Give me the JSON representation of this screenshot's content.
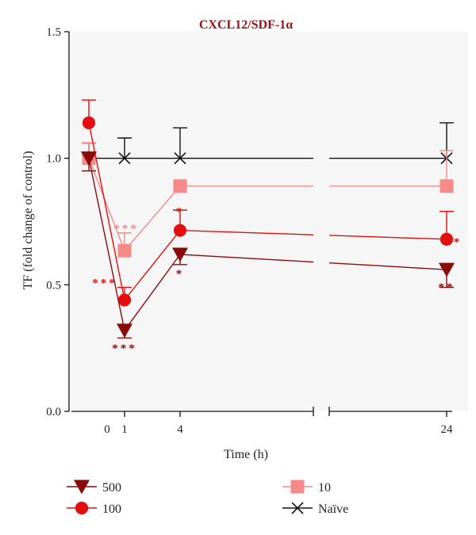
{
  "chart_data": {
    "type": "line",
    "title": "CXCL12/SDF-1α",
    "xlabel": "Time (h)",
    "ylabel": "TF (fold change of control)",
    "ylim": [
      0,
      1.5
    ],
    "y_ticks": [
      "0.0",
      "0.5",
      "1.0",
      "1.5"
    ],
    "x_ticks": [
      "0",
      "1",
      "4",
      "24"
    ],
    "x_axis_break": true,
    "legend_placement": "bottom",
    "series": [
      {
        "name": "500",
        "color": "#8b0a0a",
        "marker": "triangle-down",
        "points": [
          {
            "x": 0,
            "y": 1.0,
            "err": 0.05
          },
          {
            "x": 1,
            "y": 0.32,
            "err": 0.03,
            "sig": "***"
          },
          {
            "x": 4,
            "y": 0.62,
            "err": 0.04,
            "sig": "*"
          },
          {
            "x": 24,
            "y": 0.56,
            "err": 0.07,
            "sig": "**"
          }
        ]
      },
      {
        "name": "100",
        "color": "#e30e0e",
        "marker": "circle",
        "points": [
          {
            "x": 0,
            "y": 1.14,
            "err": 0.09
          },
          {
            "x": 1,
            "y": 0.44,
            "err": 0.05,
            "sig": "***"
          },
          {
            "x": 4,
            "y": 0.715,
            "err": 0.08,
            "sig": "*"
          },
          {
            "x": 24,
            "y": 0.68,
            "err": 0.11,
            "sig": "*"
          }
        ]
      },
      {
        "name": "10",
        "color": "#f58a8a",
        "marker": "square",
        "points": [
          {
            "x": 0,
            "y": 1.0,
            "err": 0.06
          },
          {
            "x": 1,
            "y": 0.635,
            "err": 0.07,
            "sig": "***"
          },
          {
            "x": 4,
            "y": 0.89,
            "err": 0.0
          },
          {
            "x": 24,
            "y": 0.89,
            "err": 0.14
          }
        ]
      },
      {
        "name": "Naïve",
        "color": "#111111",
        "marker": "x",
        "points": [
          {
            "x": 0,
            "y": 1.0,
            "err": 0.06
          },
          {
            "x": 1,
            "y": 1.0,
            "err": 0.08
          },
          {
            "x": 4,
            "y": 1.0,
            "err": 0.12
          },
          {
            "x": 24,
            "y": 1.0,
            "err": 0.14
          }
        ]
      }
    ]
  }
}
